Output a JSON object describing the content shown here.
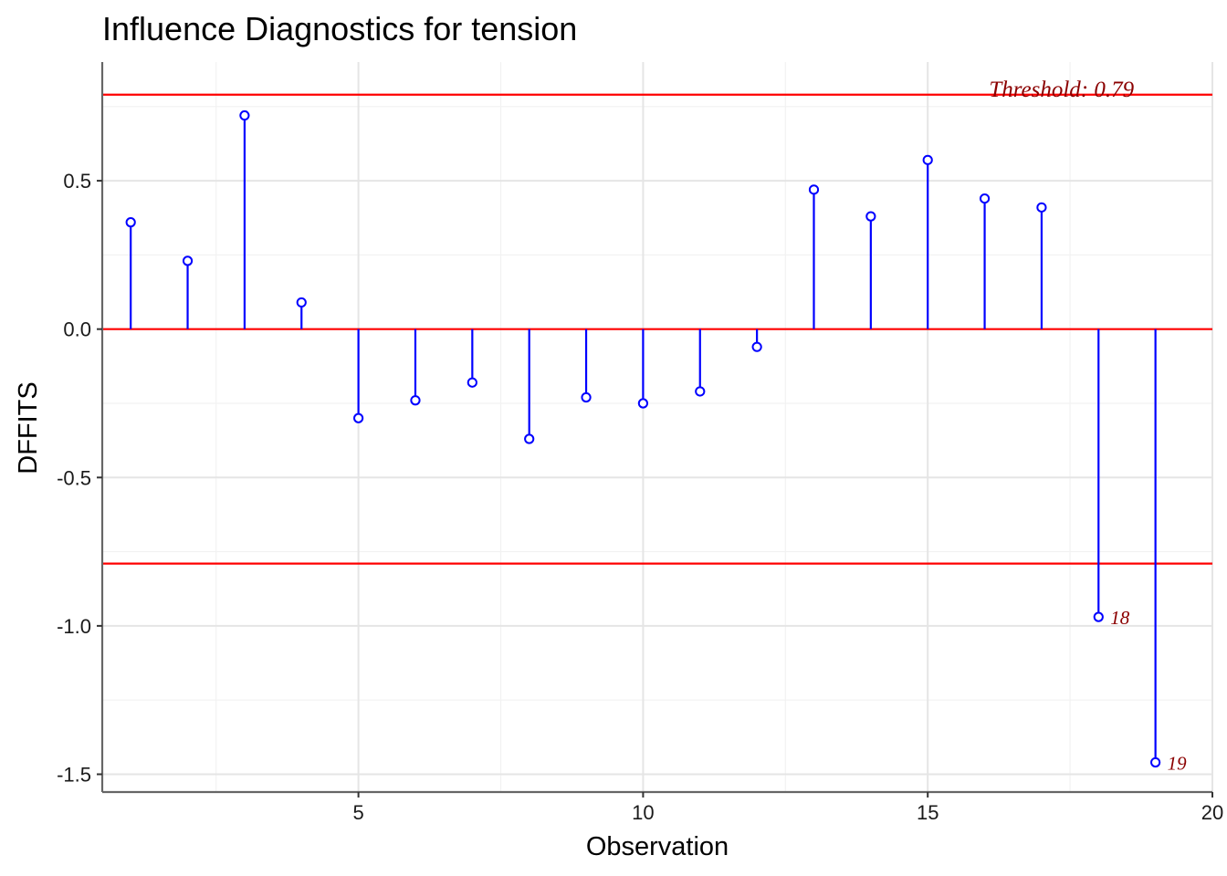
{
  "chart_data": {
    "type": "scatter",
    "subtype": "stem",
    "title": "Influence Diagnostics for tension",
    "xlabel": "Observation",
    "ylabel": "DFFITS",
    "xlim": [
      0.5,
      20
    ],
    "ylim": [
      -1.56,
      0.9
    ],
    "x_major_ticks": [
      5,
      10,
      15,
      20
    ],
    "y_major_ticks": [
      -1.5,
      -1.0,
      -0.5,
      0.0,
      0.5
    ],
    "y_tick_labels": [
      "-1.5",
      "-1.0",
      "-0.5",
      "0.0",
      "0.5"
    ],
    "x_tick_labels": [
      "5",
      "10",
      "15",
      "20"
    ],
    "grid": true,
    "legend": "none",
    "threshold": 0.79,
    "threshold_label": "Threshold: 0.79",
    "reference_line": 0,
    "series": [
      {
        "x": [
          1,
          2,
          3,
          4,
          5,
          6,
          7,
          8,
          9,
          10,
          11,
          12,
          13,
          14,
          15,
          16,
          17,
          18,
          19
        ],
        "values": [
          0.36,
          0.23,
          0.72,
          0.09,
          -0.3,
          -0.24,
          -0.18,
          -0.37,
          -0.23,
          -0.25,
          -0.21,
          -0.06,
          0.47,
          0.38,
          0.57,
          0.44,
          0.41,
          -0.97,
          -1.46
        ]
      }
    ],
    "annotations": [
      {
        "x": 18,
        "y": -0.97,
        "text": "18"
      },
      {
        "x": 19,
        "y": -1.46,
        "text": "19"
      }
    ],
    "colors": {
      "stem": "#0000ff",
      "threshold_line": "#ff0000",
      "annotation": "#8b0000",
      "grid_major": "#e5e5e5",
      "grid_minor": "#f2f2f2",
      "axis_line": "#666666"
    }
  }
}
